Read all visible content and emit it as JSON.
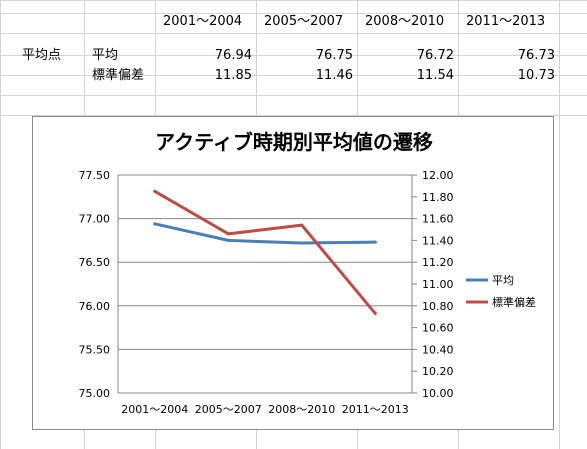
{
  "sheet": {
    "header_row": [
      "2001～2004",
      "2005～2007",
      "2008～2010",
      "2011～2013"
    ],
    "row_label": "平均点",
    "rows": [
      {
        "label": "平均",
        "values": [
          "76.94",
          "76.75",
          "76.72",
          "76.73"
        ]
      },
      {
        "label": "標準偏差",
        "values": [
          "11.85",
          "11.46",
          "11.54",
          "10.73"
        ]
      }
    ],
    "gridline_color": "#d4d4d4"
  },
  "chart_data": {
    "type": "line",
    "title": "アクティブ時期別平均値の遷移",
    "categories": [
      "2001～2004",
      "2005～2007",
      "2008～2010",
      "2011～2013"
    ],
    "series": [
      {
        "name": "平均",
        "values": [
          76.94,
          76.75,
          76.72,
          76.73
        ],
        "color": "#4a7ebb",
        "axis": "left"
      },
      {
        "name": "標準偏差",
        "values": [
          11.85,
          11.46,
          11.54,
          10.73
        ],
        "color": "#be4b48",
        "axis": "right"
      }
    ],
    "y_left": {
      "min": 75.0,
      "max": 77.5,
      "step": 0.5,
      "ticks": [
        "75.00",
        "75.50",
        "76.00",
        "76.50",
        "77.00",
        "77.50"
      ]
    },
    "y_right": {
      "min": 10.0,
      "max": 12.0,
      "step": 0.2,
      "ticks": [
        "10.00",
        "10.20",
        "10.40",
        "10.60",
        "10.80",
        "11.00",
        "11.20",
        "11.40",
        "11.60",
        "11.80",
        "12.00"
      ]
    },
    "grid": true,
    "legend_position": "right"
  }
}
